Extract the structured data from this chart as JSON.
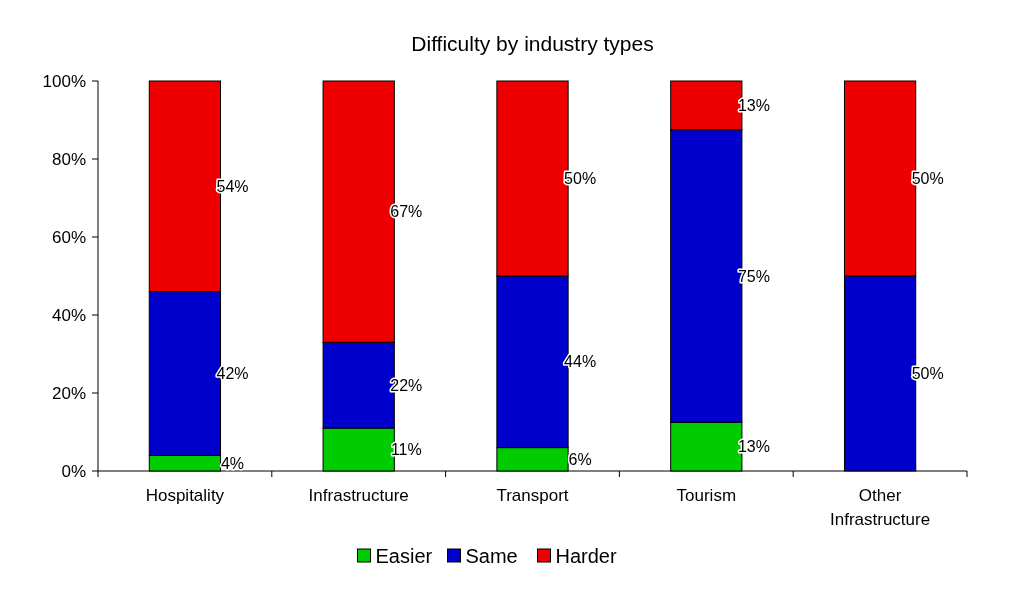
{
  "chart_data": {
    "type": "bar",
    "title": "Difficulty by industry types",
    "stacked": true,
    "categories": [
      "Hospitality",
      "Infrastructure",
      "Transport",
      "Tourism",
      "Other Infrastructure"
    ],
    "series": [
      {
        "name": "Easier",
        "color": "#00cc00",
        "values": [
          4,
          11,
          6,
          12.5,
          0
        ],
        "value_labels": [
          "4%",
          "11%",
          "6%",
          "13%",
          null
        ]
      },
      {
        "name": "Same",
        "color": "#0000cc",
        "values": [
          42,
          22,
          44,
          75,
          50
        ],
        "value_labels": [
          "42%",
          "22%",
          "44%",
          "75%",
          "50%"
        ]
      },
      {
        "name": "Harder",
        "color": "#ee0000",
        "values": [
          54,
          67,
          50,
          12.5,
          50
        ],
        "value_labels": [
          "54%",
          "67%",
          "50%",
          "13%",
          "50%"
        ]
      }
    ],
    "ylim": [
      0,
      100
    ],
    "yticks": [
      {
        "value": 0,
        "label": "0%"
      },
      {
        "value": 20,
        "label": "20%"
      },
      {
        "value": 40,
        "label": "40%"
      },
      {
        "value": 60,
        "label": "60%"
      },
      {
        "value": 80,
        "label": "80%"
      },
      {
        "value": 100,
        "label": "100%"
      }
    ],
    "grid": false,
    "legend": "bottom"
  }
}
